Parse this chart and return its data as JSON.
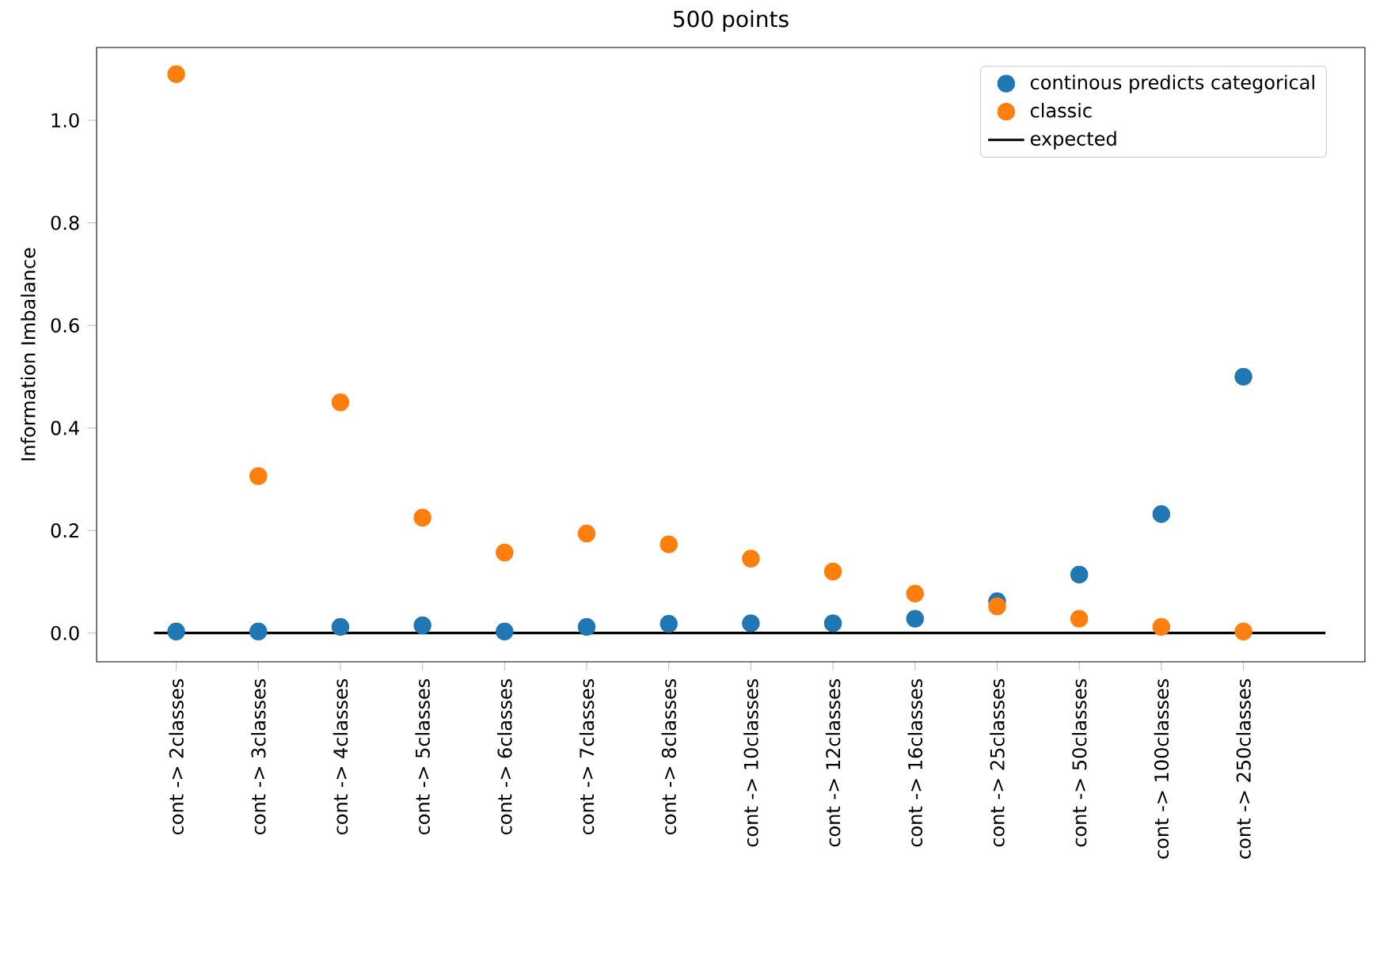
{
  "chart_data": {
    "type": "scatter",
    "title": "500 points",
    "ylabel": "Information Imbalance",
    "categories": [
      "cont -> 2classes",
      "cont -> 3classes",
      "cont -> 4classes",
      "cont -> 5classes",
      "cont -> 6classes",
      "cont -> 7classes",
      "cont -> 8classes",
      "cont -> 10classes",
      "cont -> 12classes",
      "cont -> 16classes",
      "cont -> 25classes",
      "cont -> 50classes",
      "cont -> 100classes",
      "cont -> 250classes"
    ],
    "series": [
      {
        "name": "continous predicts categorical",
        "color": "#1f77b4",
        "values": [
          0.003,
          0.003,
          0.012,
          0.015,
          0.003,
          0.012,
          0.018,
          0.019,
          0.019,
          0.028,
          0.062,
          0.114,
          0.232,
          0.5
        ]
      },
      {
        "name": "classic",
        "color": "#ff7f0e",
        "values": [
          1.09,
          0.306,
          0.45,
          0.225,
          0.157,
          0.194,
          0.173,
          0.145,
          0.12,
          0.077,
          0.052,
          0.028,
          0.012,
          0.003
        ]
      }
    ],
    "ref_lines": [
      {
        "axis": "y",
        "value": 0,
        "label": "expected",
        "color": "#000000",
        "line_style": "solid"
      }
    ],
    "ylim": [
      -0.056,
      1.142
    ],
    "yticks": [
      {
        "value": 0,
        "label": "0.0"
      },
      {
        "value": 0.2,
        "label": "0.2"
      },
      {
        "value": 0.4,
        "label": "0.4"
      },
      {
        "value": 0.6,
        "label": "0.6"
      },
      {
        "value": 0.8,
        "label": "0.8"
      },
      {
        "value": 1.0,
        "label": "1.0"
      }
    ],
    "legend": "top right",
    "grid": false
  }
}
